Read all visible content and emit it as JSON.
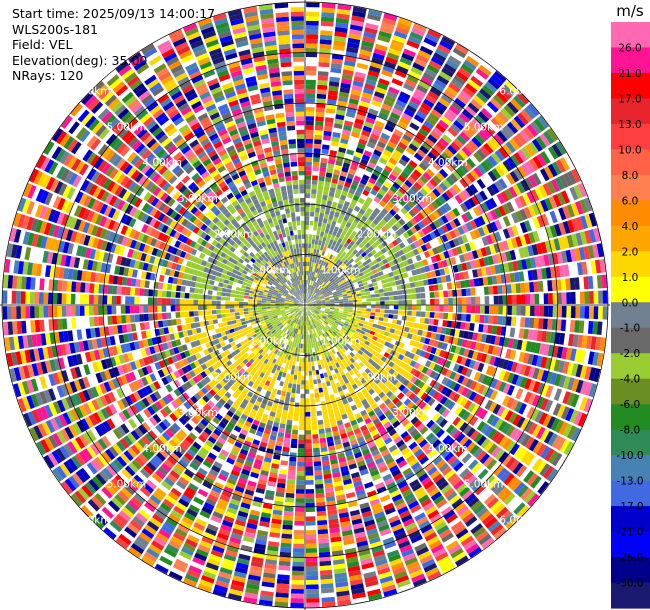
{
  "info": {
    "start_time": "Start time: 2025/09/13 14:00:17",
    "instrument": "WLS200s-181",
    "field": "Field: VEL",
    "elevation": "Elevation(deg): 35.00",
    "nrays": "NRays: 120"
  },
  "colorbar": {
    "unit": "m/s",
    "ticks": [
      "26.0",
      "21.0",
      "17.0",
      "13.0",
      "10.0",
      "8.0",
      "6.0",
      "4.0",
      "2.0",
      "1.0",
      "0.0",
      "-1.0",
      "-2.0",
      "-4.0",
      "-6.0",
      "-8.0",
      "-10.0",
      "-13.0",
      "-17.0",
      "-21.0",
      "-26.0",
      "-30.0"
    ],
    "colors": [
      "#ff69b4",
      "#ff1493",
      "#ff0000",
      "#e8242c",
      "#ff3f3f",
      "#ff6347",
      "#ff7f50",
      "#ff8c00",
      "#ffa500",
      "#ffd700",
      "#ffff00",
      "#708090",
      "#696969",
      "#9acd32",
      "#6b8e23",
      "#228b22",
      "#2e8b57",
      "#4682b4",
      "#4169e1",
      "#0000cd",
      "#0000ff",
      "#00008b",
      "#191970"
    ]
  },
  "chart_data": {
    "type": "ppi",
    "field": "VEL",
    "units": "m/s",
    "nrays": 120,
    "elevation_deg": 35.0,
    "range_rings_km": [
      1.0,
      2.0,
      3.0,
      4.0,
      5.0,
      6.0
    ],
    "ring_labels": [
      "1.00km",
      "2.00km",
      "3.00km",
      "4.00km",
      "5.00km",
      "6.00km"
    ],
    "vmin": -30.0,
    "vmax": 30.0,
    "max_range_km": 7.0
  }
}
